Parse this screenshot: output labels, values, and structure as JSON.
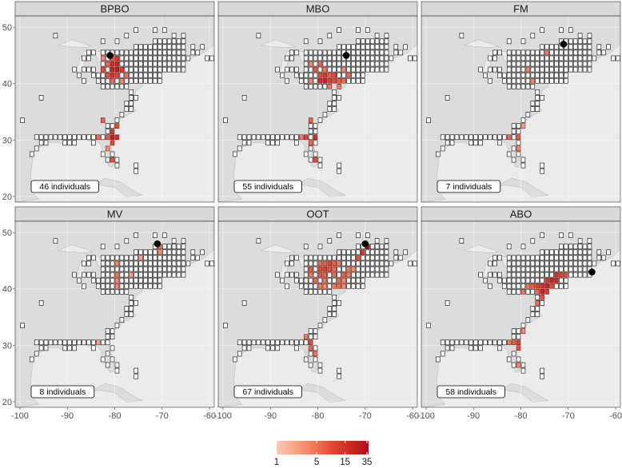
{
  "chart_data": {
    "type": "heatmap",
    "description_free": true,
    "x_ticks": [
      -100,
      -90,
      -80,
      -70,
      -60
    ],
    "y_ticks": [
      20,
      30,
      40,
      50
    ],
    "xlim": [
      -101,
      -59
    ],
    "ylim": [
      19,
      52
    ],
    "colors": {
      "panel_bg": "#ebebeb",
      "land": "#dcdcdc",
      "water": "#ebebeb",
      "grid": "#ffffff",
      "strip_bg": "#d9d9d9",
      "empty_cell": "#ffffff",
      "cell_border": "#000000",
      "site_marker": "#000000"
    },
    "legend": {
      "tick_labels": [
        "1",
        "5",
        "15",
        "35"
      ],
      "tick_values": [
        1,
        5,
        15,
        35
      ],
      "gradient": [
        "#fbcbb4",
        "#f5a389",
        "#ef7a5c",
        "#e24a35",
        "#cc2a22",
        "#a3111e"
      ]
    },
    "panels": [
      {
        "name": "BPBO",
        "label": "46 individuals",
        "site": [
          -81,
          45
        ],
        "cells": [
          [
            -83,
            44,
            3
          ],
          [
            -81,
            44,
            6
          ],
          [
            -80,
            44,
            12
          ],
          [
            -82,
            43,
            5
          ],
          [
            -81,
            43,
            15
          ],
          [
            -80,
            43,
            18
          ],
          [
            -83,
            42,
            8
          ],
          [
            -81,
            42,
            20
          ],
          [
            -80,
            42,
            25
          ],
          [
            -79,
            42,
            10
          ],
          [
            -82,
            41,
            7
          ],
          [
            -81,
            41,
            14
          ],
          [
            -80,
            41,
            9
          ],
          [
            -78,
            41,
            4
          ],
          [
            -81,
            40,
            5
          ],
          [
            -79,
            40,
            3
          ],
          [
            -83,
            33,
            6
          ],
          [
            -81,
            31,
            12
          ],
          [
            -80,
            32,
            8
          ],
          [
            -80,
            30,
            14
          ],
          [
            -81,
            30,
            22
          ],
          [
            -82,
            30,
            6
          ],
          [
            -81,
            29,
            9
          ],
          [
            -84,
            30,
            5
          ],
          [
            -81,
            26,
            7
          ],
          [
            -82,
            28,
            3
          ]
        ]
      },
      {
        "name": "MBO",
        "label": "55 individuals",
        "site": [
          -74,
          45
        ],
        "cells": [
          [
            -82,
            43,
            3
          ],
          [
            -80,
            43,
            5
          ],
          [
            -79,
            42,
            4
          ],
          [
            -81,
            42,
            6
          ],
          [
            -80,
            41,
            8
          ],
          [
            -79,
            41,
            12
          ],
          [
            -78,
            41,
            6
          ],
          [
            -77,
            41,
            9
          ],
          [
            -80,
            40,
            14
          ],
          [
            -79,
            40,
            18
          ],
          [
            -78,
            40,
            10
          ],
          [
            -77,
            40,
            8
          ],
          [
            -76,
            40,
            6
          ],
          [
            -75,
            40,
            5
          ],
          [
            -78,
            39,
            4
          ],
          [
            -82,
            40,
            3
          ],
          [
            -75,
            42,
            3
          ],
          [
            -74,
            41,
            5
          ],
          [
            -76,
            39,
            4
          ],
          [
            -82,
            33,
            6
          ],
          [
            -81,
            30,
            14
          ],
          [
            -83,
            30,
            9
          ],
          [
            -82,
            29,
            5
          ],
          [
            -81,
            26,
            8
          ],
          [
            -84,
            30,
            4
          ]
        ]
      },
      {
        "name": "FM",
        "label": "7 individuals",
        "site": [
          -71,
          47
        ],
        "cells": [
          [
            -75,
            45,
            4
          ],
          [
            -79,
            42,
            3
          ],
          [
            -78,
            40,
            3
          ],
          [
            -81,
            30,
            6
          ],
          [
            -81,
            28,
            3
          ],
          [
            -83,
            30,
            5
          ],
          [
            -80,
            32,
            2
          ]
        ]
      },
      {
        "name": "MV",
        "label": "8 individuals",
        "site": [
          -71,
          48
        ],
        "cells": [
          [
            -71,
            47,
            5
          ],
          [
            -71,
            46,
            3
          ],
          [
            -75,
            45,
            2
          ],
          [
            -80,
            44,
            3
          ],
          [
            -80,
            42,
            4
          ],
          [
            -80,
            41,
            3
          ],
          [
            -80,
            40,
            3
          ],
          [
            -77,
            42,
            2
          ],
          [
            -84,
            30,
            2
          ]
        ]
      },
      {
        "name": "OOT",
        "label": "67 individuals",
        "site": [
          -70,
          48
        ],
        "cells": [
          [
            -70,
            47,
            30
          ],
          [
            -71,
            46,
            12
          ],
          [
            -72,
            45,
            8
          ],
          [
            -80,
            44,
            5
          ],
          [
            -79,
            44,
            6
          ],
          [
            -78,
            44,
            9
          ],
          [
            -77,
            44,
            6
          ],
          [
            -76,
            44,
            4
          ],
          [
            -82,
            43,
            6
          ],
          [
            -80,
            43,
            8
          ],
          [
            -79,
            43,
            10
          ],
          [
            -78,
            43,
            7
          ],
          [
            -77,
            43,
            5
          ],
          [
            -74,
            43,
            4
          ],
          [
            -73,
            43,
            3
          ],
          [
            -82,
            42,
            4
          ],
          [
            -80,
            42,
            7
          ],
          [
            -79,
            42,
            6
          ],
          [
            -77,
            42,
            5
          ],
          [
            -75,
            42,
            6
          ],
          [
            -74,
            42,
            4
          ],
          [
            -81,
            41,
            5
          ],
          [
            -79,
            41,
            4
          ],
          [
            -76,
            41,
            5
          ],
          [
            -75,
            41,
            3
          ],
          [
            -80,
            40,
            4
          ],
          [
            -79,
            40,
            3
          ],
          [
            -77,
            40,
            4
          ],
          [
            -76,
            40,
            5
          ],
          [
            -75,
            40,
            3
          ],
          [
            -82,
            30,
            8
          ],
          [
            -82,
            29,
            5
          ],
          [
            -81,
            28,
            4
          ],
          [
            -83,
            31,
            4
          ]
        ]
      },
      {
        "name": "ABO",
        "label": "58 individuals",
        "site": [
          -65,
          43
        ],
        "cells": [
          [
            -73,
            42,
            15
          ],
          [
            -72,
            42,
            10
          ],
          [
            -71,
            42,
            8
          ],
          [
            -75,
            41,
            12
          ],
          [
            -74,
            41,
            22
          ],
          [
            -73,
            41,
            18
          ],
          [
            -77,
            40,
            10
          ],
          [
            -76,
            40,
            14
          ],
          [
            -75,
            40,
            20
          ],
          [
            -74,
            40,
            9
          ],
          [
            -78,
            40,
            6
          ],
          [
            -76,
            39,
            18
          ],
          [
            -75,
            39,
            12
          ],
          [
            -77,
            39,
            5
          ],
          [
            -79,
            40,
            4
          ],
          [
            -76,
            38,
            8
          ],
          [
            -80,
            39,
            4
          ],
          [
            -77,
            37,
            5
          ],
          [
            -81,
            30,
            10
          ],
          [
            -82,
            30,
            6
          ],
          [
            -81,
            29,
            7
          ],
          [
            -83,
            30,
            4
          ],
          [
            -80,
            32,
            3
          ],
          [
            -81,
            26,
            3
          ]
        ]
      }
    ]
  },
  "panel_labels": [
    "BPBO",
    "MBO",
    "FM",
    "MV",
    "OOT",
    "ABO"
  ],
  "count_labels": [
    "46 individuals",
    "55 individuals",
    "7 individuals",
    "8 individuals",
    "67 individuals",
    "58 individuals"
  ]
}
